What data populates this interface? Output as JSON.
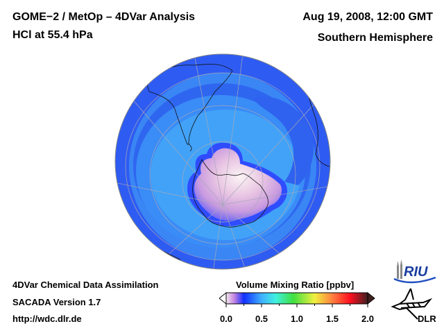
{
  "header": {
    "title_line1": "GOME−2 / MetOp – 4DVar Analysis",
    "title_line2": "HCl at 55.4 hPa",
    "datetime": "Aug 19, 2008, 12:00 GMT",
    "region": "Southern Hemisphere"
  },
  "footer": {
    "line1": "4DVar Chemical Data Assimilation",
    "line2": "SACADA Version 1.7",
    "line3": "http://wdc.dlr.de"
  },
  "map": {
    "projection": "orthographic, south-pole centered",
    "species": "HCl",
    "pressure_level": "55.4 hPa",
    "features": [
      "polar vortex HCl depletion minimum over Antarctica",
      "coastlines",
      "graticule"
    ]
  },
  "colorbar": {
    "title": "Volume Mixing Ratio [ppbv]",
    "range": [
      0.0,
      2.0
    ],
    "tick_labels": [
      "0.0",
      "0.5",
      "1.0",
      "1.5",
      "2.0"
    ],
    "ticks": [
      0.0,
      0.5,
      1.0,
      1.5,
      2.0
    ],
    "minor_ticks": [
      0.25,
      0.75,
      1.25,
      1.75
    ],
    "stops": [
      {
        "v": 0.0,
        "color": "#f4e8ec"
      },
      {
        "v": 0.12,
        "color": "#c080e0"
      },
      {
        "v": 0.25,
        "color": "#1030ff"
      },
      {
        "v": 0.5,
        "color": "#40b0ff"
      },
      {
        "v": 0.7,
        "color": "#40f0e0"
      },
      {
        "v": 0.95,
        "color": "#40e040"
      },
      {
        "v": 1.25,
        "color": "#f0f040"
      },
      {
        "v": 1.5,
        "color": "#ff8040"
      },
      {
        "v": 1.75,
        "color": "#ff1020"
      },
      {
        "v": 2.0,
        "color": "#402020"
      }
    ],
    "under_color": "#ffffff",
    "over_color": "#402020"
  },
  "logos": {
    "riu": "RIU",
    "dlr": "DLR"
  }
}
